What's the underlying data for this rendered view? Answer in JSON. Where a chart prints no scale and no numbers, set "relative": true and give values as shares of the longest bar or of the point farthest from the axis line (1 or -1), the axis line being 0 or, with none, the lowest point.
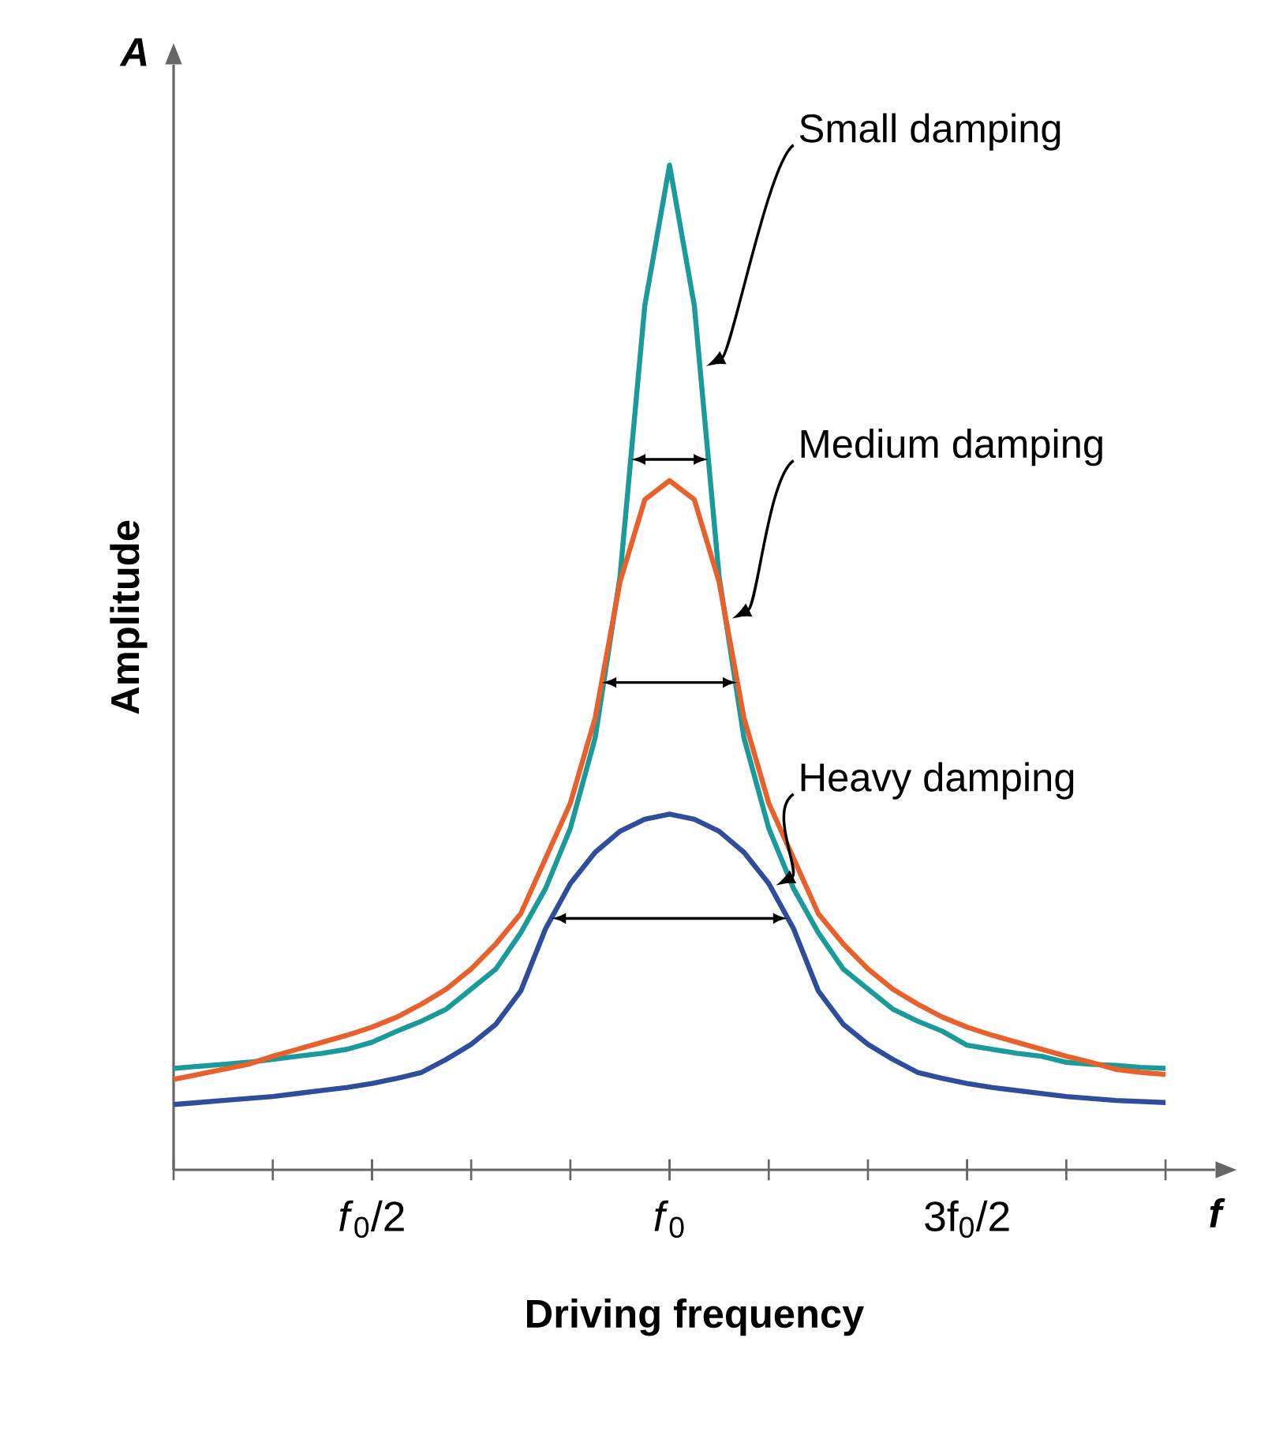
{
  "chart_data": {
    "type": "line",
    "xlabel": "Driving frequency",
    "ylabel": "Amplitude",
    "relative": true,
    "legend": false,
    "marker": "none",
    "line_style": "solid",
    "annotations": [
      "A",
      "f"
    ],
    "categories": [
      null,
      null,
      null,
      null,
      null,
      null,
      null,
      null,
      "*f*$_{0}$/2",
      null,
      null,
      null,
      null,
      null,
      null,
      null,
      null,
      null,
      null,
      null,
      "*f*$_{0}$",
      null,
      null,
      null,
      null,
      null,
      null,
      null,
      null,
      null,
      null,
      null,
      "3f$_{0}$/2",
      null,
      null,
      null,
      null,
      null,
      null,
      null,
      null
    ],
    "series": [
      {
        "name": "Small damping",
        "color": "#1a9a9a",
        "values": [
          0.101,
          0.103,
          0.105,
          0.107,
          0.11,
          0.113,
          0.116,
          0.12,
          0.127,
          0.138,
          0.148,
          0.16,
          0.18,
          0.2,
          0.236,
          0.28,
          0.34,
          0.43,
          0.59,
          0.86,
          1,
          0.86,
          0.59,
          0.43,
          0.34,
          0.28,
          0.236,
          0.2,
          0.18,
          0.16,
          0.148,
          0.138,
          0.124,
          0.12,
          0.116,
          0.113,
          0.107,
          0.105,
          0.104,
          0.102,
          0.101
        ]
      },
      {
        "name": "Medium damping",
        "color": "#e8612c",
        "values": [
          0.09,
          0.095,
          0.1,
          0.105,
          0.113,
          0.12,
          0.127,
          0.134,
          0.142,
          0.152,
          0.165,
          0.18,
          0.2,
          0.225,
          0.255,
          0.31,
          0.365,
          0.45,
          0.585,
          0.667,
          0.686,
          0.667,
          0.585,
          0.45,
          0.365,
          0.31,
          0.255,
          0.225,
          0.2,
          0.18,
          0.165,
          0.152,
          0.142,
          0.134,
          0.127,
          0.12,
          0.113,
          0.107,
          0.1,
          0.097,
          0.095
        ]
      },
      {
        "name": "Heavy damping",
        "color": "#2e4d9a",
        "values": [
          0.065,
          0.067,
          0.069,
          0.071,
          0.073,
          0.076,
          0.079,
          0.082,
          0.086,
          0.091,
          0.097,
          0.11,
          0.125,
          0.145,
          0.178,
          0.24,
          0.285,
          0.316,
          0.337,
          0.349,
          0.354,
          0.349,
          0.337,
          0.316,
          0.285,
          0.24,
          0.178,
          0.145,
          0.125,
          0.11,
          0.097,
          0.091,
          0.086,
          0.082,
          0.079,
          0.076,
          0.073,
          0.071,
          0.069,
          0.068,
          0.067
        ]
      }
    ]
  }
}
